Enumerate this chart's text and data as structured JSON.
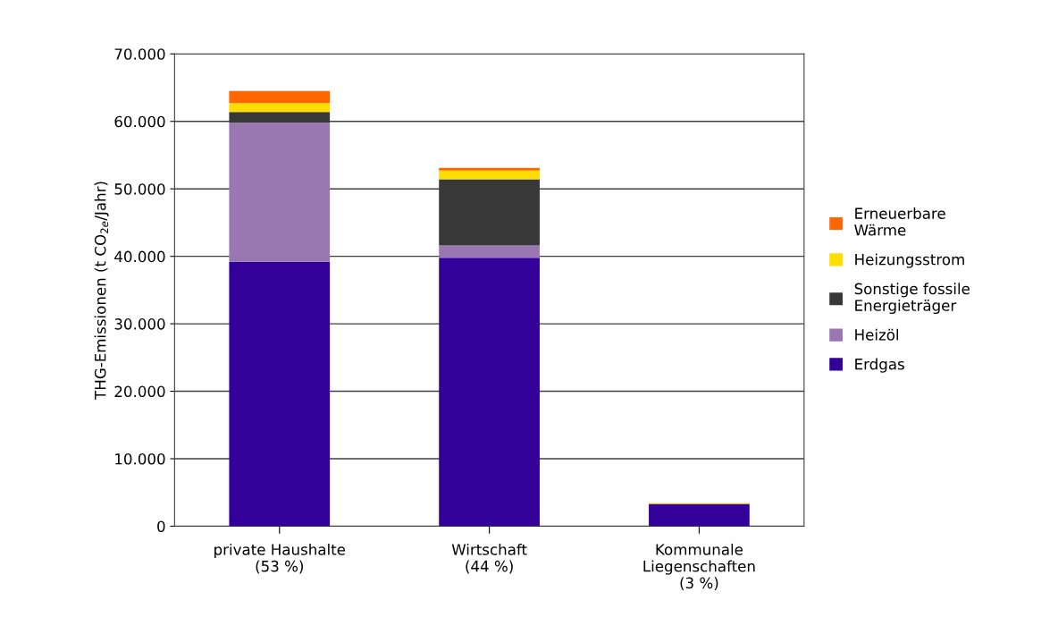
{
  "chart_data": {
    "type": "bar",
    "stacked": true,
    "ylabel": "THG-Emissionen (t CO$_{2e}$/Jahr)",
    "categories": [
      "private Haushalte\n(53 %)",
      "Wirtschaft\n(44 %)",
      "Kommunale\nLiegenschaften\n(3 %)"
    ],
    "series": [
      {
        "name": "Erdgas",
        "color": "#330099",
        "values": [
          39200,
          39800,
          3300
        ]
      },
      {
        "name": "Heizöl",
        "color": "#9977b0",
        "values": [
          20600,
          1800,
          0
        ]
      },
      {
        "name": "Sonstige fossile\nEnergieträger",
        "color": "#383838",
        "values": [
          1600,
          9800,
          0
        ]
      },
      {
        "name": "Heizungsstrom",
        "color": "#ffdd00",
        "values": [
          1300,
          1300,
          150
        ]
      },
      {
        "name": "Erneuerbare\nWärme",
        "color": "#ff6600",
        "values": [
          1800,
          400,
          0
        ]
      }
    ],
    "ylim": [
      0,
      70000
    ],
    "yticks": [
      0,
      {
        "value": 10000,
        "label": "10.000"
      },
      {
        "value": 20000,
        "label": "20.000"
      },
      {
        "value": 30000,
        "label": "30.000"
      },
      {
        "value": 40000,
        "label": "40.000"
      },
      {
        "value": 50000,
        "label": "50.000"
      },
      {
        "value": 60000,
        "label": "60.000"
      },
      {
        "value": 70000,
        "label": "70.000"
      }
    ],
    "grid": "y",
    "legend": "right"
  }
}
